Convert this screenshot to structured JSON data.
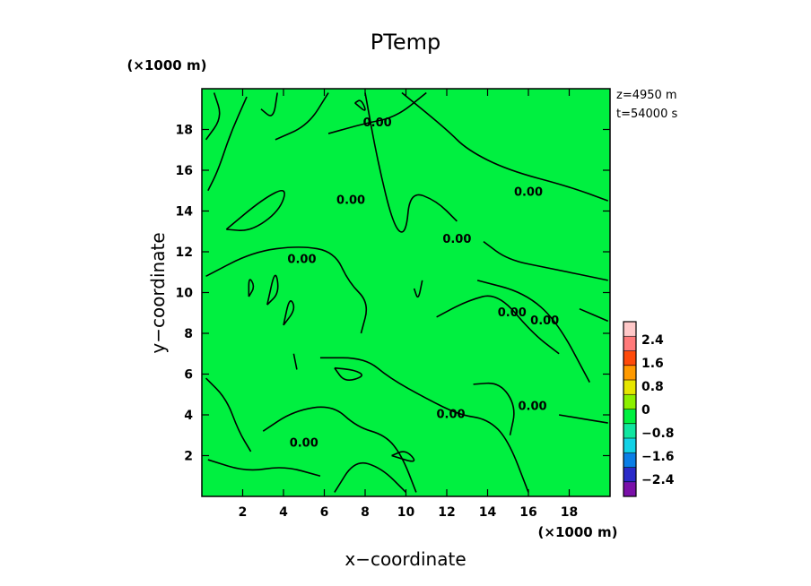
{
  "chart_data": {
    "type": "contour",
    "title": "PTemp",
    "xlabel": "x−coordinate",
    "ylabel": "y−coordinate",
    "x_unit": "(×1000 m)",
    "y_unit": "(×1000 m)",
    "info_z": "z=4950 m",
    "info_t": "t=54000 s",
    "xlim": [
      0,
      20
    ],
    "ylim": [
      0,
      20
    ],
    "x_ticks": [
      "2",
      "4",
      "6",
      "8",
      "10",
      "12",
      "14",
      "16",
      "18"
    ],
    "y_ticks": [
      "2",
      "4",
      "6",
      "8",
      "10",
      "12",
      "14",
      "16",
      "18"
    ],
    "contour_level": "0.00",
    "colorbar": {
      "labels": [
        "2.4",
        "1.6",
        "0.8",
        "0",
        "−0.8",
        "−1.6",
        "−2.4"
      ],
      "colors": [
        "#7a10a8",
        "#2a2ac8",
        "#0a7ee6",
        "#12d2e6",
        "#10e6a0",
        "#00f040",
        "#8cf000",
        "#e6e600",
        "#ff9a00",
        "#ff4a0a",
        "#ff7a7a",
        "#ffc8c8"
      ]
    },
    "field_color": "#00f040",
    "contours": [
      [
        [
          0.2,
          17.5
        ],
        [
          1.0,
          18.6
        ],
        [
          0.6,
          19.8
        ]
      ],
      [
        [
          0.3,
          15.0
        ],
        [
          0.8,
          16.0
        ],
        [
          1.4,
          17.8
        ],
        [
          2.2,
          19.6
        ]
      ],
      [
        [
          1.2,
          13.1
        ],
        [
          3.0,
          14.6
        ],
        [
          4.2,
          15.2
        ],
        [
          3.8,
          14.0
        ],
        [
          2.4,
          13.0
        ],
        [
          1.2,
          13.1
        ]
      ],
      [
        [
          2.9,
          19.0
        ],
        [
          3.5,
          18.5
        ],
        [
          3.7,
          19.8
        ]
      ],
      [
        [
          3.6,
          17.5
        ],
        [
          5.2,
          18.2
        ],
        [
          6.2,
          19.8
        ]
      ],
      [
        [
          7.5,
          19.3
        ],
        [
          8.1,
          18.8
        ],
        [
          7.8,
          19.5
        ],
        [
          7.5,
          19.3
        ]
      ],
      [
        [
          6.2,
          17.8
        ],
        [
          8.0,
          18.3
        ],
        [
          9.5,
          18.6
        ],
        [
          11.0,
          19.8
        ]
      ],
      [
        [
          9.8,
          19.8
        ],
        [
          12.0,
          18.0
        ],
        [
          13.0,
          17.0
        ],
        [
          15.0,
          16.0
        ],
        [
          18.0,
          15.2
        ],
        [
          19.9,
          14.5
        ]
      ],
      [
        [
          8.0,
          19.8
        ],
        [
          8.6,
          16.5
        ],
        [
          9.4,
          13.2
        ],
        [
          10.0,
          12.8
        ],
        [
          10.2,
          15.0
        ],
        [
          11.5,
          14.5
        ],
        [
          12.5,
          13.5
        ]
      ],
      [
        [
          13.8,
          12.5
        ],
        [
          15.0,
          11.6
        ],
        [
          17.0,
          11.2
        ],
        [
          19.9,
          10.6
        ]
      ],
      [
        [
          0.2,
          10.8
        ],
        [
          2.5,
          12.0
        ],
        [
          4.8,
          12.3
        ],
        [
          6.5,
          12.0
        ],
        [
          7.2,
          10.5
        ],
        [
          8.2,
          9.5
        ],
        [
          7.8,
          8.0
        ]
      ],
      [
        [
          2.3,
          9.8
        ],
        [
          2.6,
          10.3
        ],
        [
          2.3,
          10.8
        ],
        [
          2.3,
          9.8
        ]
      ],
      [
        [
          3.2,
          9.4
        ],
        [
          3.8,
          10.0
        ],
        [
          3.6,
          11.2
        ],
        [
          3.2,
          9.4
        ]
      ],
      [
        [
          4.0,
          8.4
        ],
        [
          4.3,
          9.8
        ],
        [
          4.6,
          9.2
        ],
        [
          4.0,
          8.4
        ]
      ],
      [
        [
          10.4,
          10.2
        ],
        [
          10.6,
          9.6
        ],
        [
          10.8,
          10.6
        ]
      ],
      [
        [
          11.5,
          8.8
        ],
        [
          13.0,
          9.6
        ],
        [
          14.5,
          10.0
        ],
        [
          16.2,
          8.0
        ],
        [
          17.5,
          7.0
        ]
      ],
      [
        [
          13.5,
          10.6
        ],
        [
          15.8,
          10.0
        ],
        [
          17.4,
          8.6
        ],
        [
          19.0,
          5.6
        ]
      ],
      [
        [
          4.5,
          7.0
        ],
        [
          4.7,
          6.0
        ],
        [
          4.5,
          7.0
        ]
      ],
      [
        [
          0.2,
          5.8
        ],
        [
          1.2,
          4.8
        ],
        [
          1.8,
          3.2
        ],
        [
          2.4,
          2.2
        ]
      ],
      [
        [
          6.5,
          6.3
        ],
        [
          7.5,
          6.2
        ],
        [
          8.0,
          5.9
        ],
        [
          7.0,
          5.6
        ],
        [
          6.5,
          6.3
        ]
      ],
      [
        [
          5.8,
          6.8
        ],
        [
          8.0,
          6.8
        ],
        [
          9.2,
          5.8
        ],
        [
          11.0,
          4.8
        ],
        [
          12.6,
          4.0
        ],
        [
          14.0,
          3.8
        ],
        [
          15.0,
          2.8
        ],
        [
          16.0,
          0.2
        ]
      ],
      [
        [
          3.0,
          3.2
        ],
        [
          4.5,
          4.2
        ],
        [
          6.4,
          4.5
        ],
        [
          7.6,
          3.4
        ],
        [
          9.0,
          3.0
        ],
        [
          9.8,
          2.0
        ],
        [
          10.5,
          0.2
        ]
      ],
      [
        [
          9.3,
          2.0
        ],
        [
          10.0,
          2.3
        ],
        [
          10.6,
          1.6
        ],
        [
          9.3,
          2.0
        ]
      ],
      [
        [
          13.3,
          5.5
        ],
        [
          14.6,
          5.6
        ],
        [
          15.4,
          4.4
        ],
        [
          15.1,
          3.0
        ]
      ],
      [
        [
          18.5,
          9.2
        ],
        [
          19.9,
          8.6
        ]
      ],
      [
        [
          17.5,
          4.0
        ],
        [
          19.9,
          3.6
        ]
      ],
      [
        [
          0.3,
          1.8
        ],
        [
          2.2,
          1.2
        ],
        [
          4.0,
          1.5
        ],
        [
          5.8,
          1.0
        ]
      ],
      [
        [
          6.5,
          0.2
        ],
        [
          7.5,
          1.8
        ],
        [
          8.8,
          1.4
        ],
        [
          10.0,
          0.2
        ]
      ]
    ],
    "contour_labels": [
      {
        "x": 8.6,
        "y": 18.3
      },
      {
        "x": 16.0,
        "y": 14.9
      },
      {
        "x": 7.3,
        "y": 14.5
      },
      {
        "x": 12.5,
        "y": 12.6
      },
      {
        "x": 4.9,
        "y": 11.6
      },
      {
        "x": 15.2,
        "y": 9.0
      },
      {
        "x": 16.8,
        "y": 8.6
      },
      {
        "x": 16.2,
        "y": 4.4
      },
      {
        "x": 12.2,
        "y": 4.0
      },
      {
        "x": 5.0,
        "y": 2.6
      }
    ]
  }
}
